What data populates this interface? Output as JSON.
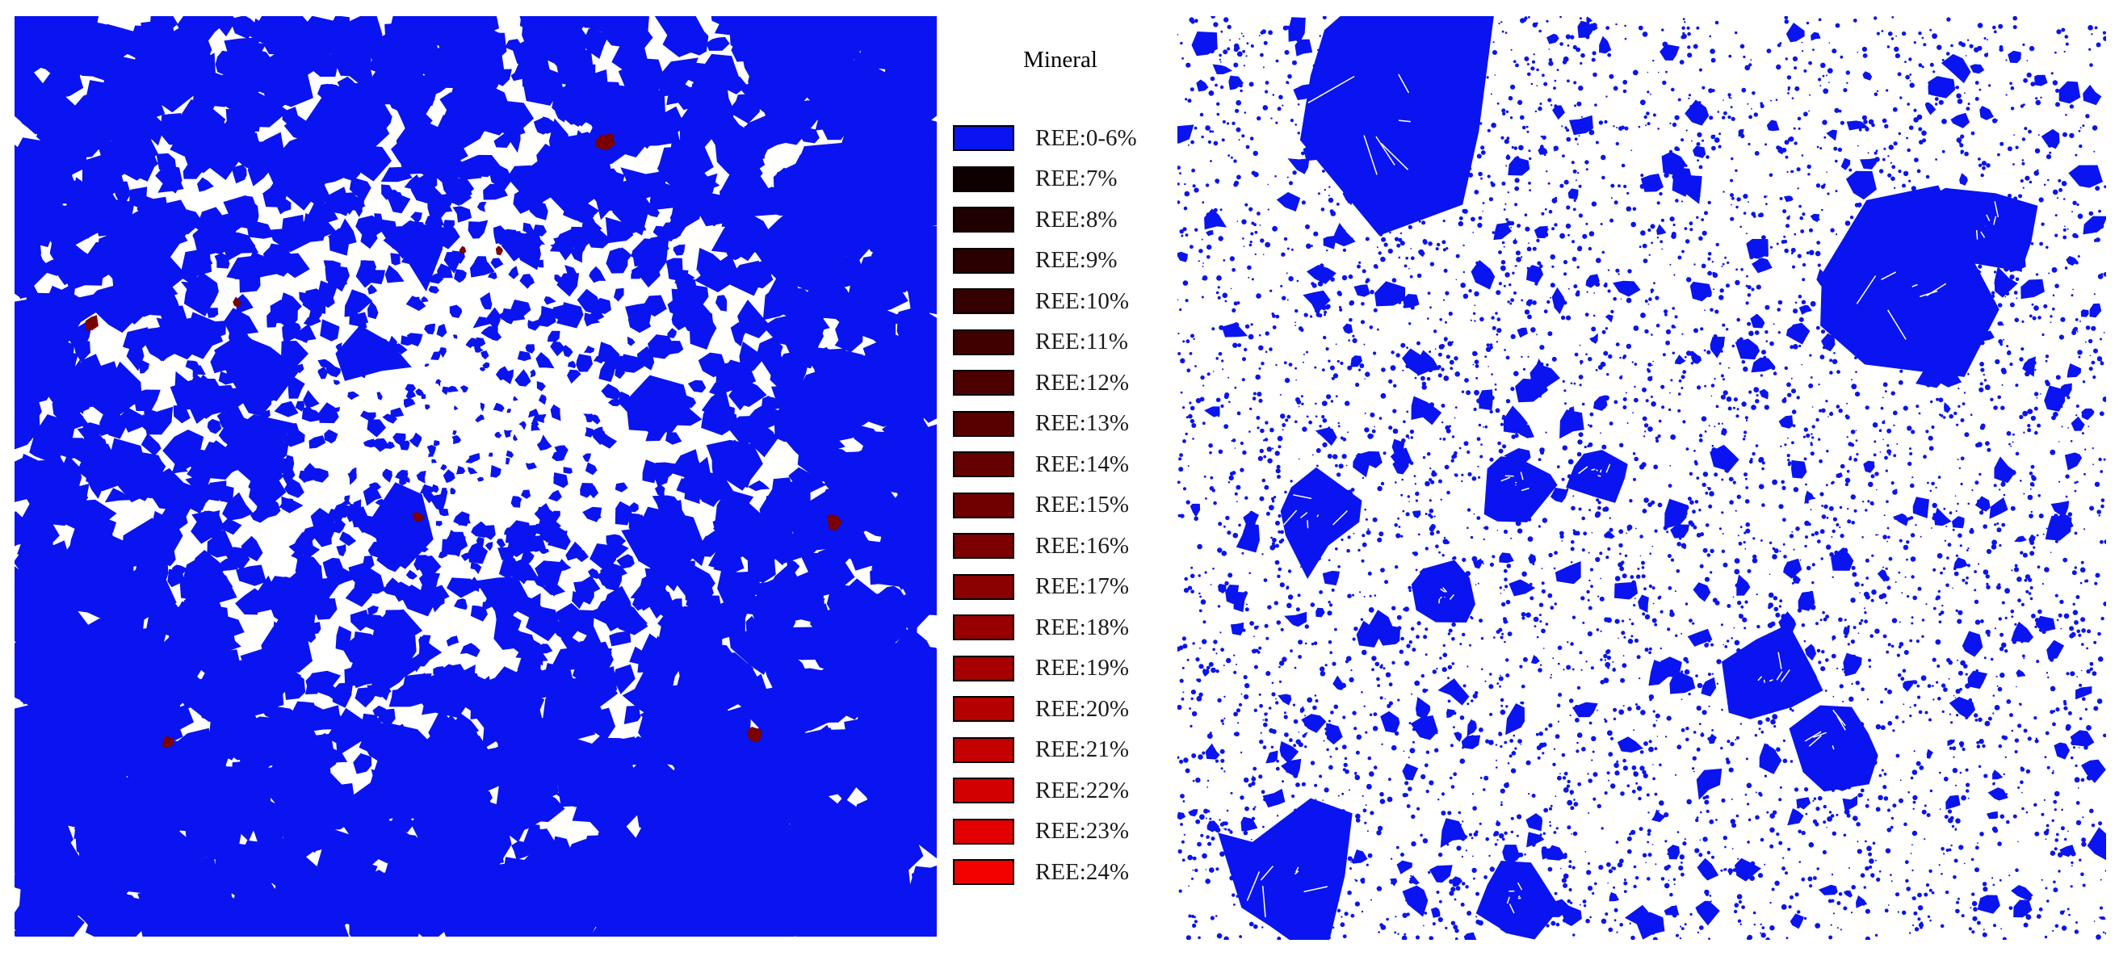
{
  "legend": {
    "title": "Mineral",
    "items": [
      {
        "label": "REE:0-6%",
        "color": "#0a14f0"
      },
      {
        "label": "REE:7%",
        "color": "#0f0000"
      },
      {
        "label": "REE:8%",
        "color": "#1e0000"
      },
      {
        "label": "REE:9%",
        "color": "#2a0000"
      },
      {
        "label": "REE:10%",
        "color": "#350000"
      },
      {
        "label": "REE:11%",
        "color": "#400000"
      },
      {
        "label": "REE:12%",
        "color": "#4c0000"
      },
      {
        "label": "REE:13%",
        "color": "#580000"
      },
      {
        "label": "REE:14%",
        "color": "#640000"
      },
      {
        "label": "REE:15%",
        "color": "#700000"
      },
      {
        "label": "REE:16%",
        "color": "#7c0000"
      },
      {
        "label": "REE:17%",
        "color": "#8a0000"
      },
      {
        "label": "REE:18%",
        "color": "#980000"
      },
      {
        "label": "REE:19%",
        "color": "#a60000"
      },
      {
        "label": "REE:20%",
        "color": "#b50000"
      },
      {
        "label": "REE:21%",
        "color": "#c40000"
      },
      {
        "label": "REE:22%",
        "color": "#d30000"
      },
      {
        "label": "REE:23%",
        "color": "#e30000"
      },
      {
        "label": "REE:24%",
        "color": "#f20000"
      }
    ]
  },
  "colors": {
    "mineral": "#0a14f0",
    "matrix": "#ffffff",
    "ree_grain": "#7a0000"
  }
}
